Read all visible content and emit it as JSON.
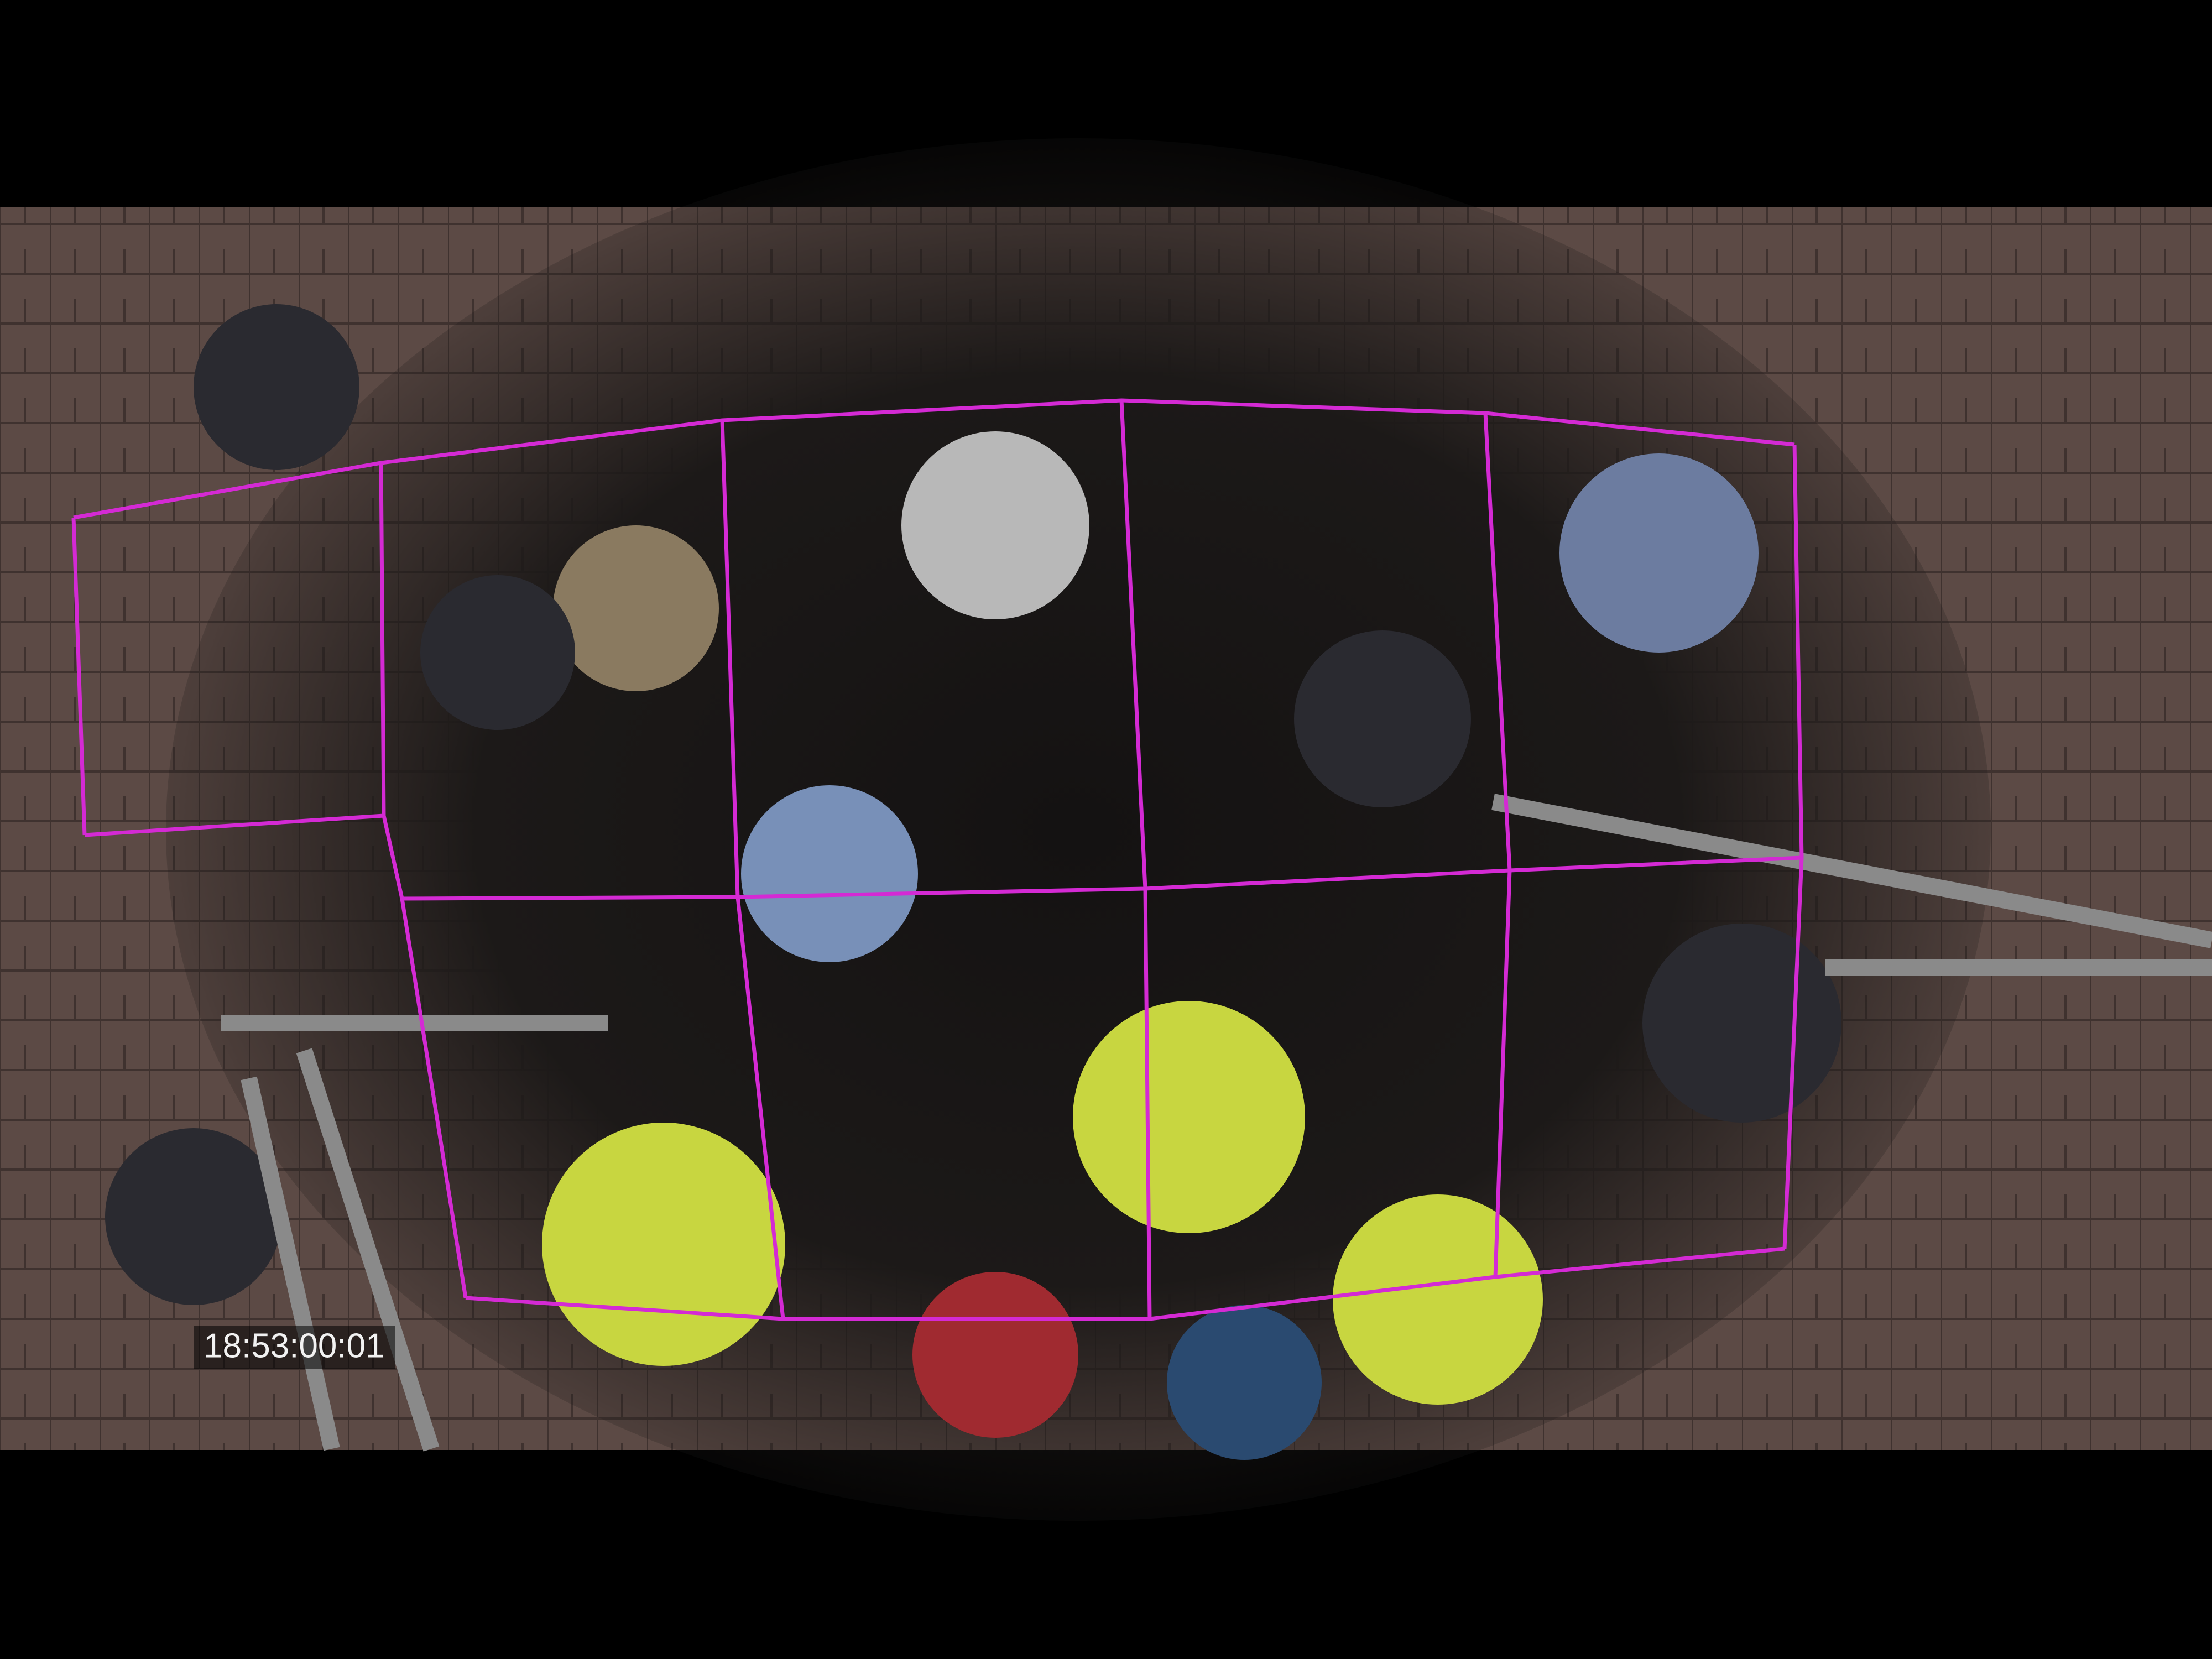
{
  "timestamp": "18:53:00:01"
}
